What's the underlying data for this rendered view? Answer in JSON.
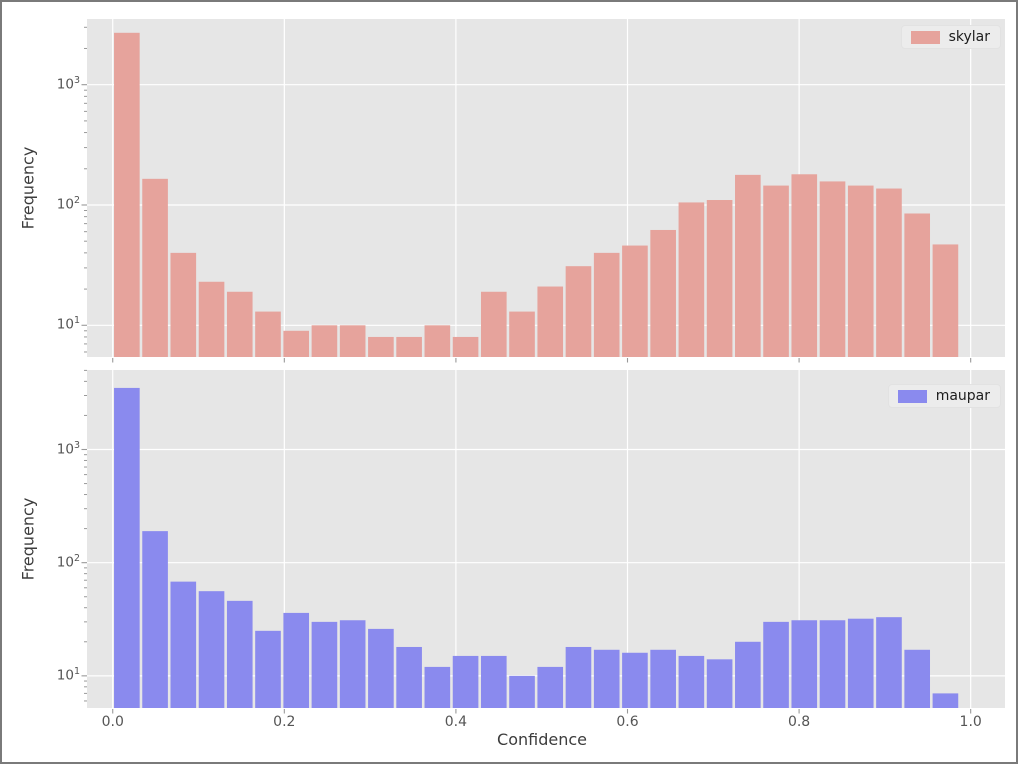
{
  "figure": {
    "colors": {
      "plot_background": "#e6e6e6",
      "grid": "#ffffff",
      "tick_mark": "#999999",
      "figure_border": "#7a7a7a"
    }
  },
  "x_axis": {
    "label": "Confidence",
    "ticks": [
      0.0,
      0.2,
      0.4,
      0.6,
      0.8,
      1.0
    ],
    "tick_labels": [
      "0.0",
      "0.2",
      "0.4",
      "0.6",
      "0.8",
      "1.0"
    ],
    "xlim": [
      -0.03,
      1.04
    ]
  },
  "chart_data": [
    {
      "type": "bar",
      "subtype": "histogram",
      "series_name": "skylar",
      "color": "#e6a39c",
      "ylabel": "Frequency",
      "yscale": "log",
      "ylim": [
        5.45,
        3516
      ],
      "ytick_exponents": [
        3,
        2,
        1
      ],
      "legend_position": "upper right",
      "bin_start": 0.0,
      "bin_width": 0.0329,
      "values": [
        2700,
        165,
        40,
        23,
        19,
        13,
        9,
        10,
        10,
        8,
        8,
        10,
        8,
        19,
        13,
        21,
        31,
        40,
        46,
        62,
        105,
        110,
        178,
        145,
        180,
        157,
        145,
        137,
        85,
        47
      ]
    },
    {
      "type": "bar",
      "subtype": "histogram",
      "series_name": "maupar",
      "color": "#8a8aee",
      "ylabel": "Frequency",
      "yscale": "log",
      "ylim": [
        5.2,
        5040
      ],
      "ytick_exponents": [
        3,
        2,
        1
      ],
      "legend_position": "upper right",
      "bin_start": 0.0,
      "bin_width": 0.0329,
      "values": [
        3500,
        190,
        68,
        56,
        46,
        25,
        36,
        30,
        31,
        26,
        18,
        12,
        15,
        15,
        10,
        12,
        18,
        17,
        16,
        17,
        15,
        14,
        20,
        30,
        31,
        31,
        32,
        33,
        17,
        7
      ]
    }
  ]
}
